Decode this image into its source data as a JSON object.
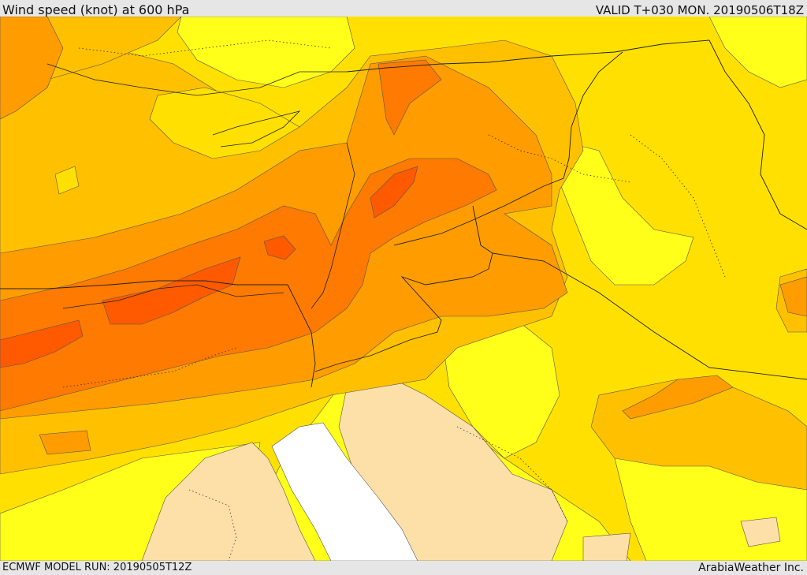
{
  "header": {
    "title": "Wind speed (knot) at 600 hPa",
    "valid": "VALID T+030 MON. 20190506T18Z"
  },
  "footer": {
    "model_run": "ECMWF MODEL RUN: 20190505T12Z",
    "credit": "ArabiaWeather Inc."
  },
  "colors": {
    "land_calm": "#fde0a8",
    "sea_calm": "#ffffff",
    "band_1": "#ffff1a",
    "band_2": "#ffe000",
    "band_3": "#ffc000",
    "band_4": "#ff9c00",
    "band_5": "#ff7a00",
    "band_6": "#ff5a00"
  }
}
